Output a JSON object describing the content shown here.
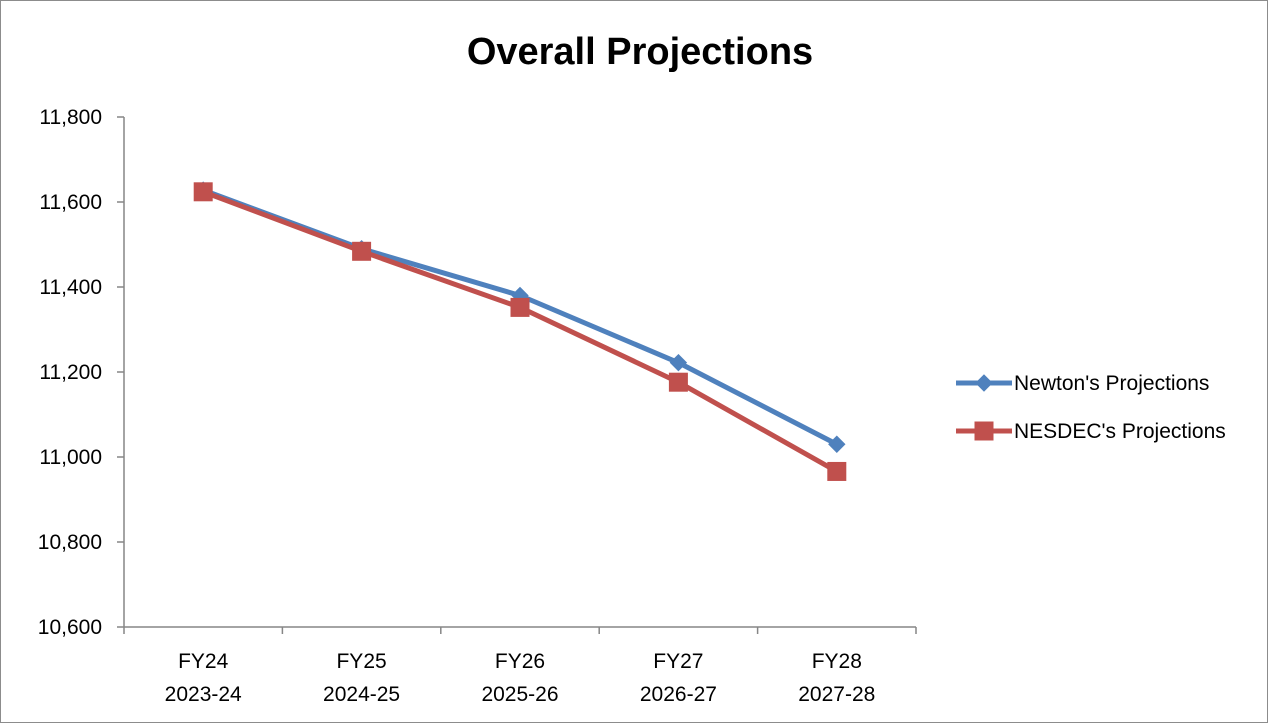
{
  "chart_data": {
    "type": "line",
    "title": "Overall Projections",
    "xlabel": "",
    "ylabel": "",
    "categories": [
      [
        "FY24",
        "2023-24"
      ],
      [
        "FY25",
        "2024-25"
      ],
      [
        "FY26",
        "2025-26"
      ],
      [
        "FY27",
        "2026-27"
      ],
      [
        "FY28",
        "2027-28"
      ]
    ],
    "ylim": [
      10600,
      11800
    ],
    "yticks": [
      10600,
      10800,
      11000,
      11200,
      11400,
      11600,
      11800
    ],
    "ytick_labels": [
      "10,600",
      "10,800",
      "11,000",
      "11,200",
      "11,400",
      "11,600",
      "11,800"
    ],
    "grid": false,
    "legend_position": "right",
    "series": [
      {
        "name": "Newton's Projections",
        "color": "#4f81bd",
        "marker": "diamond",
        "values": [
          11628,
          11490,
          11380,
          11222,
          11030
        ]
      },
      {
        "name": "NESDEC's Projections",
        "color": "#c0504d",
        "marker": "square",
        "values": [
          11624,
          11484,
          11352,
          11176,
          10966
        ]
      }
    ]
  }
}
